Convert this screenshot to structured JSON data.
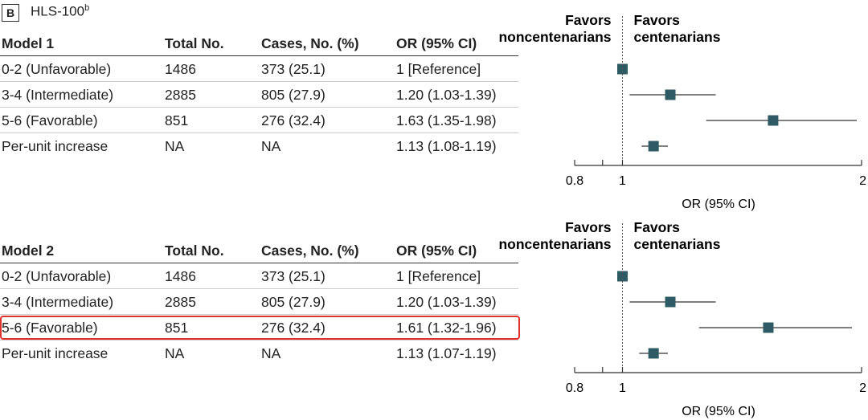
{
  "panel": {
    "badge": "B",
    "title": "HLS-100",
    "title_sup": "b"
  },
  "columns": [
    "Total No.",
    "Cases, No. (%)",
    "OR (95% CI)"
  ],
  "favors": {
    "left": [
      "Favors",
      "noncentenarians"
    ],
    "right": [
      "Favors",
      "centenarians"
    ]
  },
  "chart_data": [
    {
      "type": "forest",
      "model": "Model 1",
      "xlabel": "OR (95% CI)",
      "xlim": [
        0.8,
        2
      ],
      "xticks": [
        0.8,
        1,
        2
      ],
      "reference": 1,
      "rows": [
        {
          "label": "0-2 (Unfavorable)",
          "total": "1486",
          "cases": "373 (25.1)",
          "or_text": "1 [Reference]",
          "or": 1,
          "lo": 1,
          "hi": 1
        },
        {
          "label": "3-4 (Intermediate)",
          "total": "2885",
          "cases": "805 (27.9)",
          "or_text": "1.20 (1.03-1.39)",
          "or": 1.2,
          "lo": 1.03,
          "hi": 1.39
        },
        {
          "label": "5-6 (Favorable)",
          "total": "851",
          "cases": "276 (32.4)",
          "or_text": "1.63 (1.35-1.98)",
          "or": 1.63,
          "lo": 1.35,
          "hi": 1.98
        },
        {
          "label": "Per-unit increase",
          "total": "NA",
          "cases": "NA",
          "or_text": "1.13 (1.08-1.19)",
          "or": 1.13,
          "lo": 1.08,
          "hi": 1.19
        }
      ]
    },
    {
      "type": "forest",
      "model": "Model 2",
      "xlabel": "OR (95% CI)",
      "xlim": [
        0.8,
        2
      ],
      "xticks": [
        0.8,
        1,
        2
      ],
      "reference": 1,
      "highlight_row": 2,
      "highlight_color": "#e0312c",
      "rows": [
        {
          "label": "0-2 (Unfavorable)",
          "total": "1486",
          "cases": "373 (25.1)",
          "or_text": "1 [Reference]",
          "or": 1,
          "lo": 1,
          "hi": 1
        },
        {
          "label": "3-4 (Intermediate)",
          "total": "2885",
          "cases": "805 (27.9)",
          "or_text": "1.20 (1.03-1.39)",
          "or": 1.2,
          "lo": 1.03,
          "hi": 1.39
        },
        {
          "label": "5-6 (Favorable)",
          "total": "851",
          "cases": "276 (32.4)",
          "or_text": "1.61 (1.32-1.96)",
          "or": 1.61,
          "lo": 1.32,
          "hi": 1.96
        },
        {
          "label": "Per-unit increase",
          "total": "NA",
          "cases": "NA",
          "or_text": "1.13 (1.07-1.19)",
          "or": 1.13,
          "lo": 1.07,
          "hi": 1.19
        }
      ]
    }
  ],
  "colors": {
    "marker": "#2e5a63",
    "ci_line": "#333333",
    "axis": "#333333",
    "highlight": "#e0312c"
  }
}
